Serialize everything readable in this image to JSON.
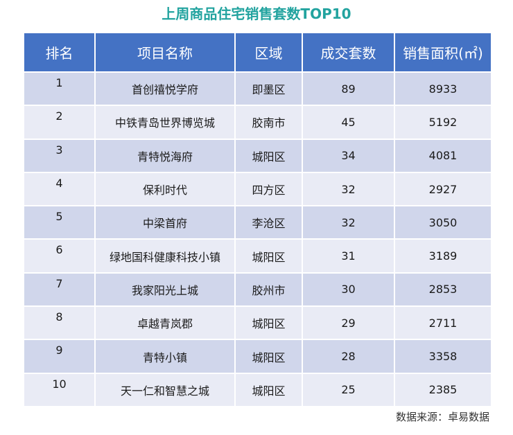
{
  "chart_data": {
    "type": "table",
    "title": "上周商品住宅销售套数TOP10",
    "columns": [
      "排名",
      "项目名称",
      "区域",
      "成交套数",
      "销售面积(㎡)"
    ],
    "rows": [
      {
        "rank": 1,
        "project": "首创禧悦学府",
        "district": "即墨区",
        "units": 89,
        "area": 8933
      },
      {
        "rank": 2,
        "project": "中铁青岛世界博览城",
        "district": "胶南市",
        "units": 45,
        "area": 5192
      },
      {
        "rank": 3,
        "project": "青特悦海府",
        "district": "城阳区",
        "units": 34,
        "area": 4081
      },
      {
        "rank": 4,
        "project": "保利时代",
        "district": "四方区",
        "units": 32,
        "area": 2927
      },
      {
        "rank": 5,
        "project": "中梁首府",
        "district": "李沧区",
        "units": 32,
        "area": 3050
      },
      {
        "rank": 6,
        "project": "绿地国科健康科技小镇",
        "district": "城阳区",
        "units": 31,
        "area": 3189
      },
      {
        "rank": 7,
        "project": "我家阳光上城",
        "district": "胶州市",
        "units": 30,
        "area": 2853
      },
      {
        "rank": 8,
        "project": "卓越青岚郡",
        "district": "城阳区",
        "units": 29,
        "area": 2711
      },
      {
        "rank": 9,
        "project": "青特小镇",
        "district": "城阳区",
        "units": 28,
        "area": 3358
      },
      {
        "rank": 10,
        "project": "天一仁和智慧之城",
        "district": "城阳区",
        "units": 25,
        "area": 2385
      }
    ]
  },
  "source": "数据来源：卓易数据",
  "colors": {
    "title": "#22A39F",
    "header_bg": "#4472C4",
    "header_text": "#FFFFFF",
    "row_odd": "#D0D6EB",
    "row_even": "#E9EBF5"
  }
}
